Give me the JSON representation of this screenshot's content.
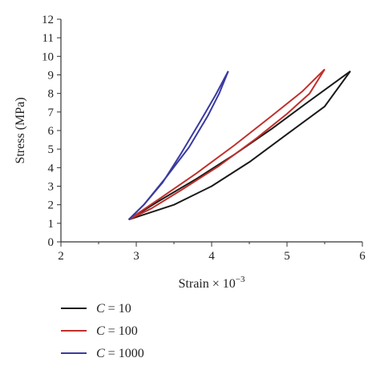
{
  "chart_data": {
    "type": "line",
    "title": "",
    "xlabel": "Strain × 10",
    "xlabel_exponent": "−3",
    "ylabel": "Stress (MPa)",
    "xlim": [
      2,
      6
    ],
    "ylim": [
      0,
      12
    ],
    "xticks": [
      2,
      3,
      4,
      5,
      6
    ],
    "yticks": [
      0,
      1,
      2,
      3,
      4,
      5,
      6,
      7,
      8,
      9,
      10,
      11,
      12
    ],
    "grid": false,
    "legend_position": "bottom-left",
    "series": [
      {
        "legend_var": "C",
        "legend_value": "= 10",
        "color": "#1a1a1a",
        "loading": [
          [
            2.9,
            1.2
          ],
          [
            3.3,
            2.2
          ],
          [
            3.8,
            3.4
          ],
          [
            4.3,
            4.7
          ],
          [
            4.8,
            6.1
          ],
          [
            5.3,
            7.6
          ],
          [
            5.84,
            9.2
          ]
        ],
        "unloading": [
          [
            5.84,
            9.2
          ],
          [
            5.5,
            7.3
          ],
          [
            5.0,
            5.8
          ],
          [
            4.5,
            4.3
          ],
          [
            4.0,
            3.0
          ],
          [
            3.5,
            2.0
          ],
          [
            2.9,
            1.2
          ]
        ]
      },
      {
        "legend_var": "C",
        "legend_value": "= 100",
        "color": "#c0302b",
        "loading": [
          [
            2.9,
            1.2
          ],
          [
            3.3,
            2.3
          ],
          [
            3.8,
            3.7
          ],
          [
            4.3,
            5.2
          ],
          [
            4.8,
            6.8
          ],
          [
            5.2,
            8.1
          ],
          [
            5.5,
            9.3
          ]
        ],
        "unloading": [
          [
            5.5,
            9.3
          ],
          [
            5.3,
            8.0
          ],
          [
            5.0,
            6.9
          ],
          [
            4.6,
            5.6
          ],
          [
            4.1,
            4.1
          ],
          [
            3.6,
            2.8
          ],
          [
            3.2,
            1.8
          ],
          [
            2.9,
            1.2
          ]
        ]
      },
      {
        "legend_var": "C",
        "legend_value": "= 1000",
        "color": "#3a3aa0",
        "loading": [
          [
            2.9,
            1.2
          ],
          [
            3.1,
            2.0
          ],
          [
            3.4,
            3.5
          ],
          [
            3.7,
            5.1
          ],
          [
            3.95,
            6.8
          ],
          [
            4.1,
            8.0
          ],
          [
            4.22,
            9.2
          ]
        ],
        "unloading": [
          [
            4.22,
            9.2
          ],
          [
            4.05,
            7.9
          ],
          [
            3.85,
            6.5
          ],
          [
            3.6,
            4.8
          ],
          [
            3.35,
            3.2
          ],
          [
            3.1,
            2.0
          ],
          [
            2.9,
            1.2
          ]
        ]
      }
    ]
  }
}
